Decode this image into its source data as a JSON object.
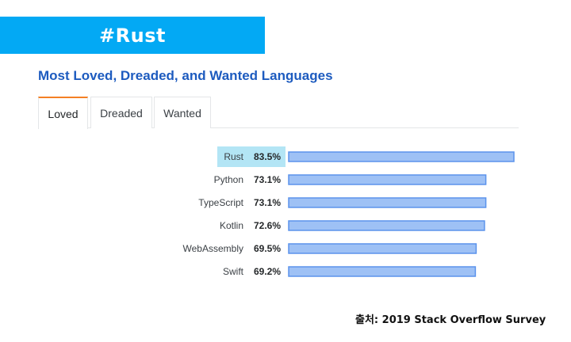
{
  "banner": {
    "title": "#Rust",
    "bg_color": "#03a9f4"
  },
  "section": {
    "title": "Most Loved, Dreaded, and Wanted Languages",
    "title_color": "#1d5bbf"
  },
  "tabs": [
    {
      "label": "Loved",
      "active": true
    },
    {
      "label": "Dreaded",
      "active": false
    },
    {
      "label": "Wanted",
      "active": false
    }
  ],
  "chart_data": {
    "type": "bar",
    "orientation": "horizontal",
    "categories": [
      "Rust",
      "Python",
      "TypeScript",
      "Kotlin",
      "WebAssembly",
      "Swift"
    ],
    "values": [
      83.5,
      73.1,
      73.1,
      72.6,
      69.5,
      69.2
    ],
    "value_labels": [
      "83.5%",
      "73.1%",
      "73.1%",
      "72.6%",
      "69.5%",
      "69.2%"
    ],
    "unit": "%",
    "highlighted_category": "Rust",
    "bar_color": "#9ec1f5",
    "bar_border_color": "#5b93ec",
    "highlight_color": "#b3e5f5",
    "grid": false,
    "legend": "none"
  },
  "footer": {
    "source": "출처: 2019 Stack Overflow Survey"
  }
}
